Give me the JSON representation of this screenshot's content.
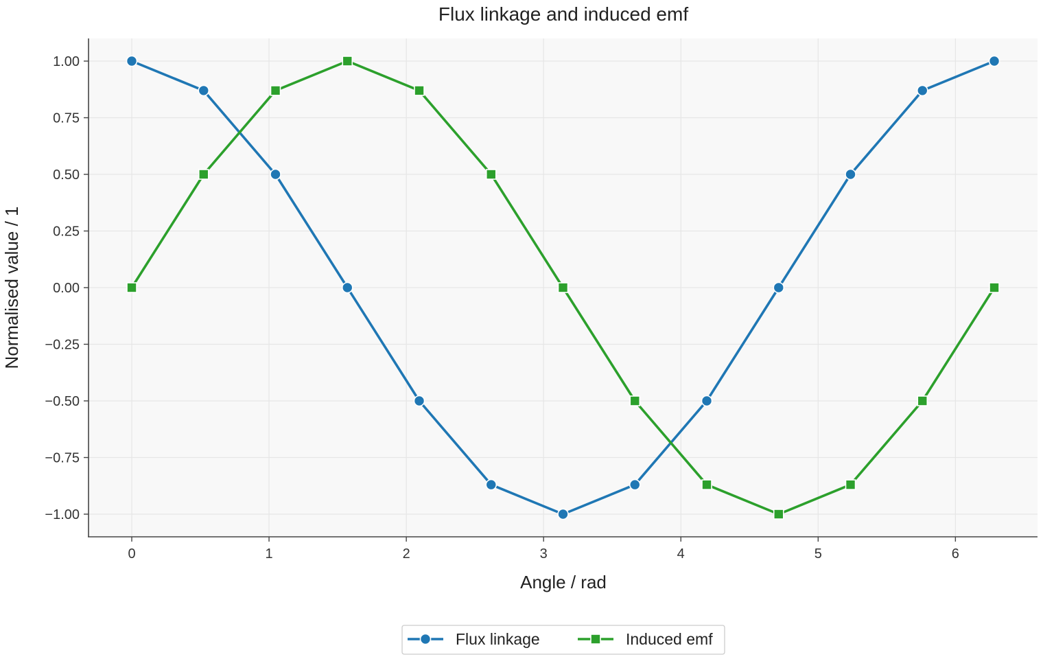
{
  "chart_data": {
    "type": "line",
    "title": "Flux linkage and induced emf",
    "xlabel": "Angle / rad",
    "ylabel": "Normalised value / 1",
    "xlim": [
      -0.315,
      6.598
    ],
    "ylim": [
      -1.1,
      1.1
    ],
    "xticks": [
      0,
      1,
      2,
      3,
      4,
      5,
      6
    ],
    "xtick_labels": [
      "0",
      "1",
      "2",
      "3",
      "4",
      "5",
      "6"
    ],
    "yticks": [
      1.0,
      0.75,
      0.5,
      0.25,
      0.0,
      -0.25,
      -0.5,
      -0.75,
      -1.0
    ],
    "ytick_labels": [
      "1.00",
      "0.75",
      "0.50",
      "0.25",
      "0.00",
      "−0.25",
      "−0.50",
      "−0.75",
      "−1.00"
    ],
    "grid": true,
    "legend_position": "bottom-center",
    "x": [
      0,
      0.5236,
      1.0472,
      1.5708,
      2.0944,
      2.618,
      3.1416,
      3.6652,
      4.1888,
      4.7124,
      5.236,
      5.7596,
      6.2832
    ],
    "series": [
      {
        "name": "Flux linkage",
        "color": "#1f77b4",
        "marker": "circle",
        "values": [
          1.0,
          0.87,
          0.5,
          0.0,
          -0.5,
          -0.87,
          -1.0,
          -0.87,
          -0.5,
          0.0,
          0.5,
          0.87,
          1.0
        ]
      },
      {
        "name": "Induced emf",
        "color": "#2ca02c",
        "marker": "square",
        "values": [
          0.0,
          0.5,
          0.87,
          1.0,
          0.87,
          0.5,
          0.0,
          -0.5,
          -0.87,
          -1.0,
          -0.87,
          -0.5,
          0.0
        ]
      }
    ]
  }
}
